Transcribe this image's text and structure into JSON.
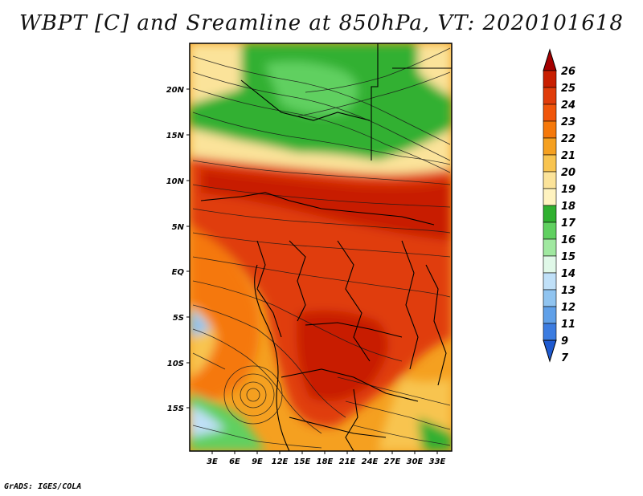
{
  "title": "WBPT [C] and Sreamline at 850hPa, VT: 2020101618",
  "credit": "GrADS: IGES/COLA",
  "lat_labels": [
    "20N",
    "15N",
    "10N",
    "5N",
    "EQ",
    "5S",
    "10S",
    "15S"
  ],
  "lon_labels": [
    "3E",
    "6E",
    "9E",
    "12E",
    "15E",
    "18E",
    "21E",
    "24E",
    "27E",
    "30E",
    "33E"
  ],
  "colorbar": {
    "labels": [
      "26",
      "25",
      "24",
      "23",
      "22",
      "21",
      "20",
      "19",
      "18",
      "17",
      "16",
      "15",
      "14",
      "13",
      "12",
      "11",
      "9",
      "7"
    ],
    "colors": [
      "#a50000",
      "#c81e00",
      "#e03c0a",
      "#f0550a",
      "#f5780a",
      "#f5a020",
      "#f8c450",
      "#fbe39a",
      "#fff3c0",
      "#30b030",
      "#60d060",
      "#a0e8a0",
      "#e0f8e8",
      "#c0e0f8",
      "#90c4f0",
      "#60a0e8",
      "#3c7ce0",
      "#1e5ad0"
    ]
  }
}
